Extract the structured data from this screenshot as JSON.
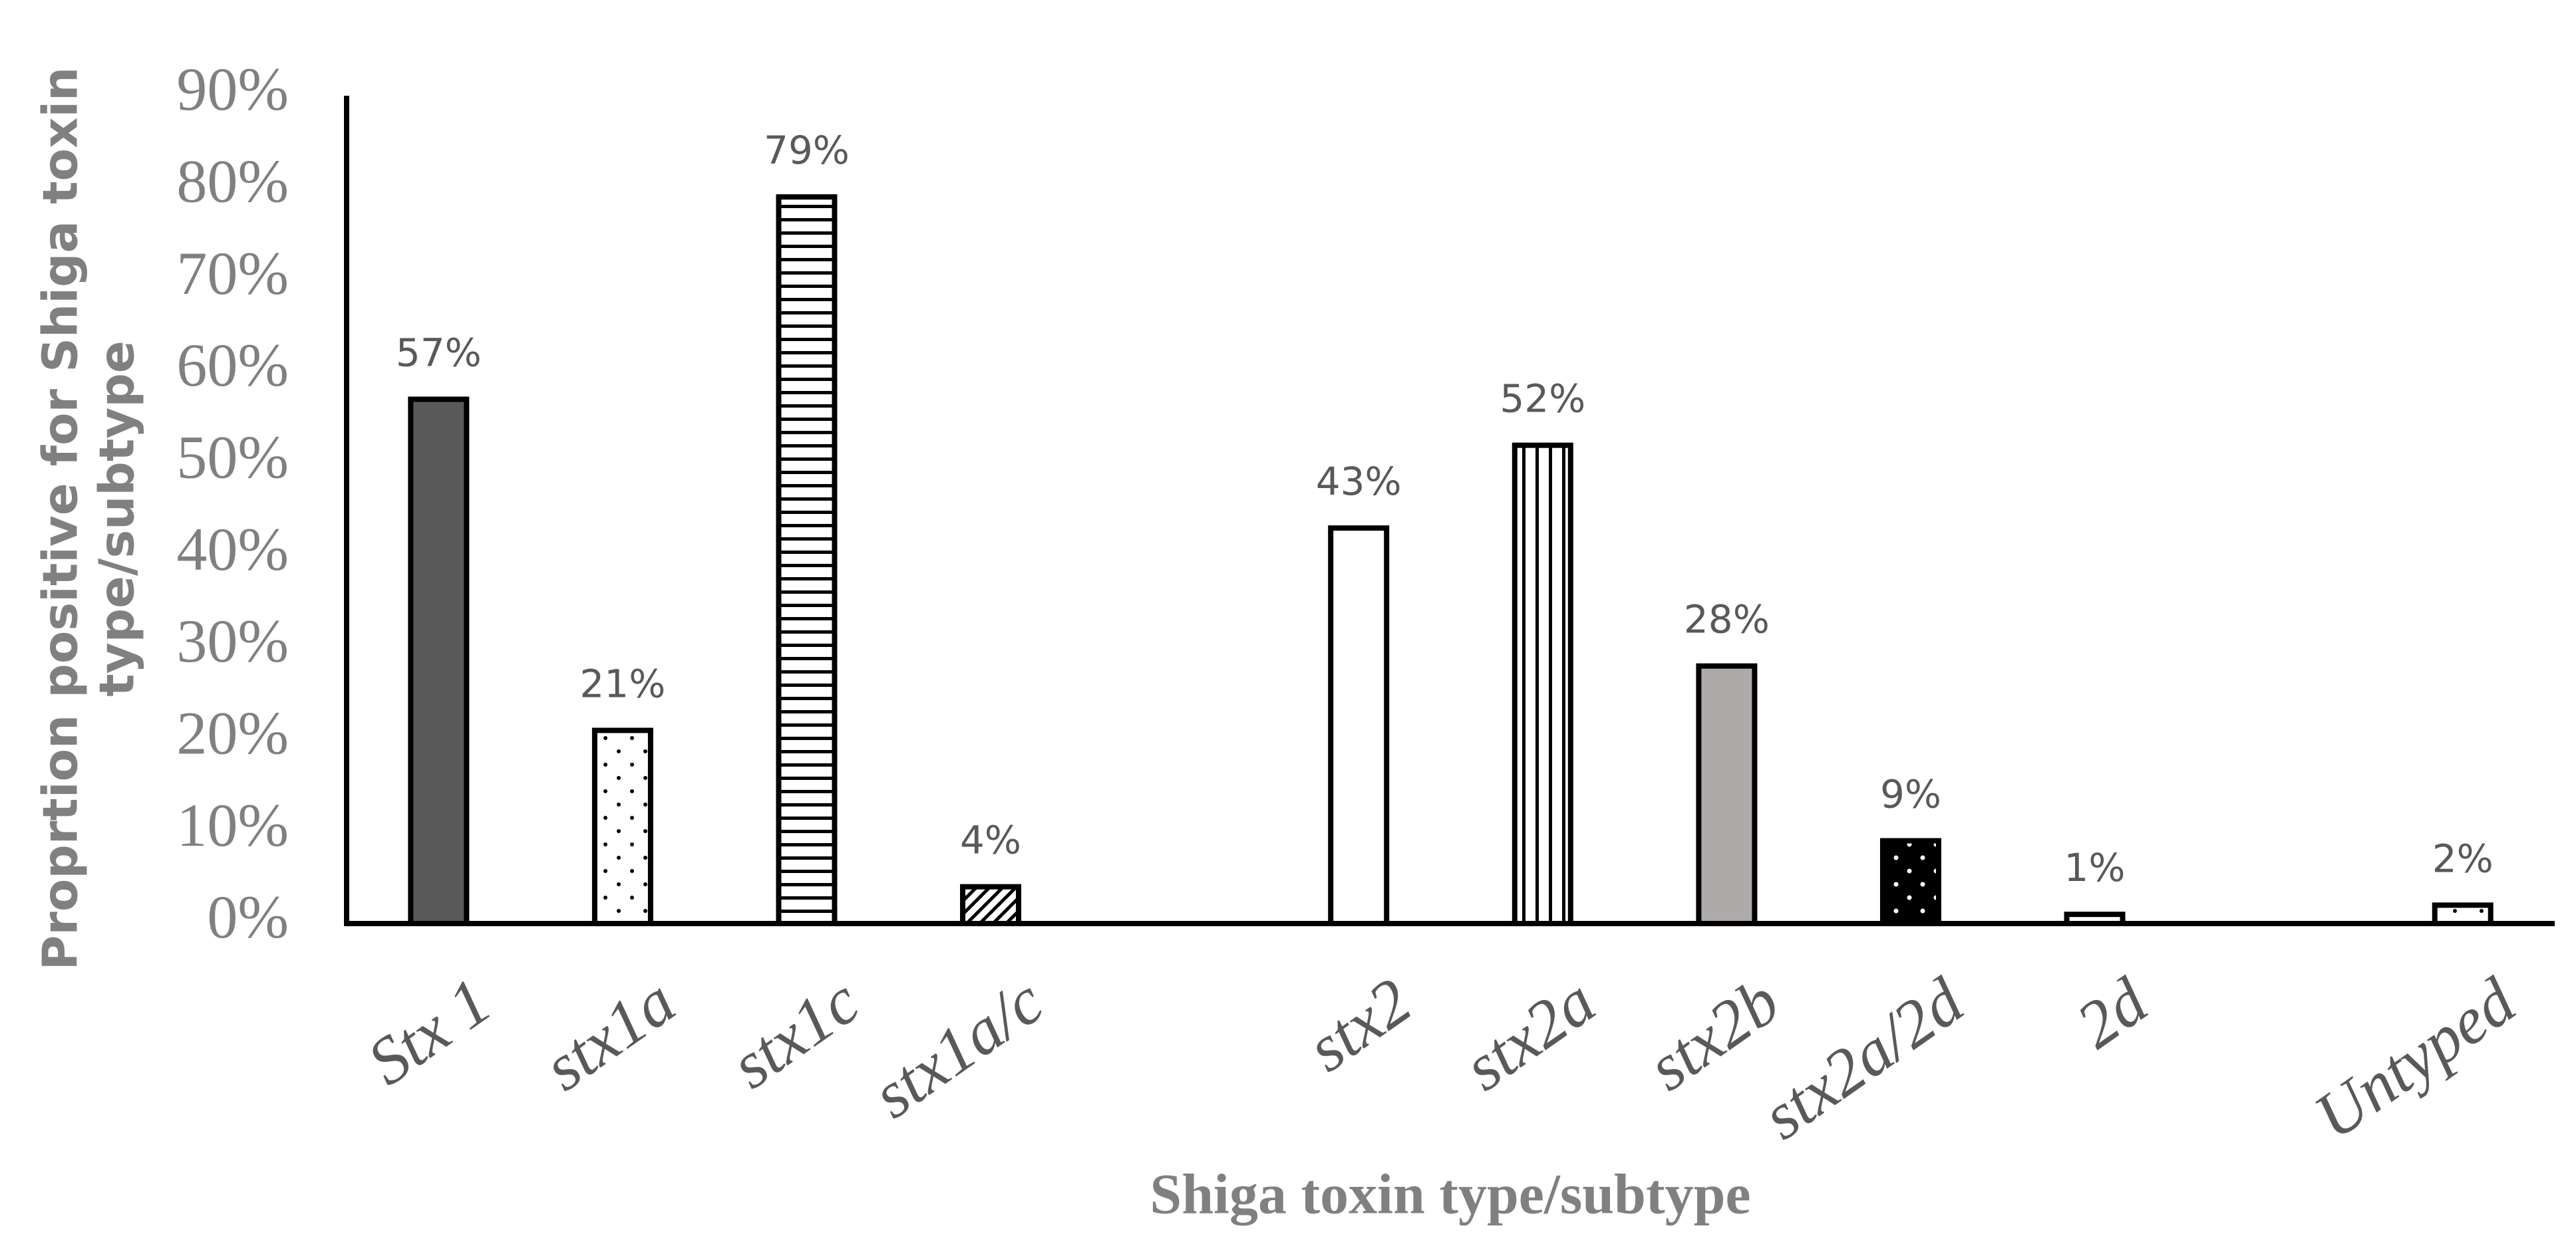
{
  "chart_data": {
    "type": "bar",
    "x_label": "Shiga toxin type/subtype",
    "y_label": [
      "Proprtion positive for Shiga toxin",
      "type/subtype"
    ],
    "categories": [
      "Stx 1",
      "stx1a",
      "stx1c",
      "stx1a/c",
      null,
      "stx2",
      "stx2a",
      "stx2b",
      "stx2a/2d",
      "2d",
      null,
      "Untyped"
    ],
    "values": [
      57,
      21,
      79,
      4,
      null,
      43,
      52,
      28,
      9,
      1,
      null,
      2
    ],
    "value_labels": [
      "57%",
      "21%",
      "79%",
      "4%",
      null,
      "43%",
      "52%",
      "28%",
      "9%",
      "1%",
      null,
      "2%"
    ],
    "colors": [
      "#595959",
      "#ffffff",
      "#ffffff",
      "#ffffff",
      null,
      "#ffffff",
      "#ffffff",
      "#aeaaaa",
      "#000000",
      "#ffffff",
      null,
      "#ffffff"
    ],
    "patterns": [
      "solid",
      "dots",
      "horizontal",
      "diagonal",
      null,
      "solid",
      "vertical",
      "solid",
      "white-dots",
      "solid",
      null,
      "dots"
    ],
    "ylim": [
      0,
      90
    ],
    "yticks": [
      {
        "value": 0,
        "label": "0%"
      },
      {
        "value": 10,
        "label": "10%"
      },
      {
        "value": 20,
        "label": "20%"
      },
      {
        "value": 30,
        "label": "30%"
      },
      {
        "value": 40,
        "label": "40%"
      },
      {
        "value": 50,
        "label": "50%"
      },
      {
        "value": 60,
        "label": "60%"
      },
      {
        "value": 70,
        "label": "70%"
      },
      {
        "value": 80,
        "label": "80%"
      },
      {
        "value": 90,
        "label": "90%"
      }
    ]
  }
}
